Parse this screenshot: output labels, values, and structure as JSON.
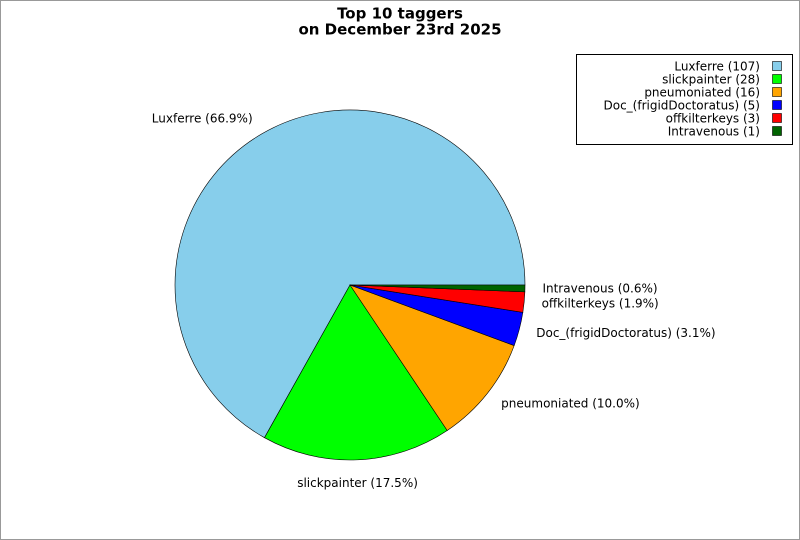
{
  "chart_data": {
    "type": "pie",
    "title": "Top 10 taggers",
    "subtitle": "on December 23rd 2025",
    "categories": [
      "Luxferre",
      "slickpainter",
      "pneumoniated",
      "Doc_(frigidDoctoratus)",
      "offkilterkeys",
      "Intravenous"
    ],
    "values": [
      107,
      28,
      16,
      5,
      3,
      1
    ],
    "value_labels": [
      "Luxferre (66.9%)",
      "slickpainter (17.5%)",
      "pneumoniated (10.0%)",
      "Doc_(frigidDoctoratus) (3.1%)",
      "offkilterkeys (1.9%)",
      "Intravenous (0.6%)"
    ],
    "legend_labels": [
      "Luxferre (107)",
      "slickpainter (28)",
      "pneumoniated (16)",
      "Doc_(frigidDoctoratus) (5)",
      "offkilterkeys (3)",
      "Intravenous (1)"
    ],
    "colors": [
      "#87ceeb",
      "#00ff00",
      "#ffa500",
      "#0000ff",
      "#ff0000",
      "#006400"
    ],
    "legend": "top-right"
  }
}
